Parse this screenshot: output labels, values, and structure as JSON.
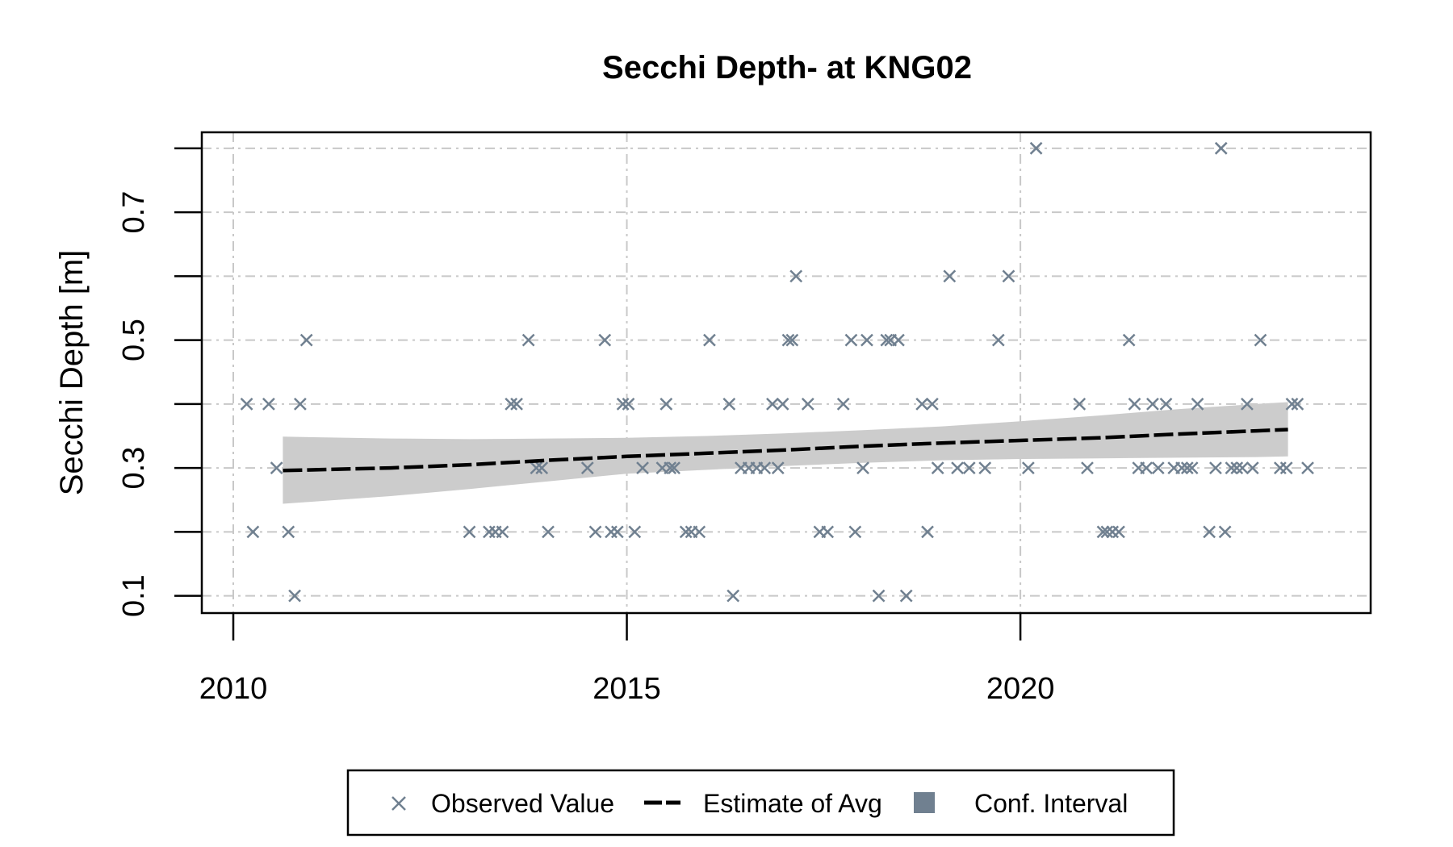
{
  "chart_data": {
    "type": "scatter",
    "title": "Secchi Depth- at KNG02",
    "xlabel": "",
    "ylabel": "Secchi Depth [m]",
    "xlim": [
      2009.6,
      2024.45
    ],
    "ylim": [
      0.073,
      0.825
    ],
    "x_ticks": [
      2010,
      2015,
      2020
    ],
    "x_tick_labels": [
      "2010",
      "2015",
      "2020"
    ],
    "y_ticks": [
      0.1,
      0.3,
      0.5,
      0.7
    ],
    "y_tick_labels": [
      "0.1",
      "0.3",
      "0.5",
      "0.7"
    ],
    "y_grid": [
      0.1,
      0.2,
      0.3,
      0.4,
      0.5,
      0.6,
      0.7,
      0.8
    ],
    "grid": true,
    "legend_position": "bottom",
    "colors": {
      "observed": "#708090",
      "estimate": "#000000",
      "ci_band": "#cccccc",
      "ci_legend": "#708090",
      "grid": "#c8c8c8"
    },
    "legend": [
      {
        "label": "Observed Value",
        "marker": "x"
      },
      {
        "label": "Estimate of Avg",
        "marker": "dashed-line"
      },
      {
        "label": "Conf. Interval",
        "marker": "square"
      }
    ],
    "series": [
      {
        "name": "Observed Value",
        "points": [
          [
            2010.17,
            0.4
          ],
          [
            2010.25,
            0.2
          ],
          [
            2010.45,
            0.4
          ],
          [
            2010.55,
            0.3
          ],
          [
            2010.7,
            0.2
          ],
          [
            2010.78,
            0.1
          ],
          [
            2010.85,
            0.4
          ],
          [
            2010.93,
            0.5
          ],
          [
            2013.0,
            0.2
          ],
          [
            2013.25,
            0.2
          ],
          [
            2013.33,
            0.2
          ],
          [
            2013.42,
            0.2
          ],
          [
            2013.53,
            0.4
          ],
          [
            2013.6,
            0.4
          ],
          [
            2013.75,
            0.5
          ],
          [
            2013.85,
            0.3
          ],
          [
            2013.92,
            0.3
          ],
          [
            2014.0,
            0.2
          ],
          [
            2014.5,
            0.3
          ],
          [
            2014.6,
            0.2
          ],
          [
            2014.72,
            0.5
          ],
          [
            2014.8,
            0.2
          ],
          [
            2014.88,
            0.2
          ],
          [
            2014.95,
            0.4
          ],
          [
            2015.02,
            0.4
          ],
          [
            2015.1,
            0.2
          ],
          [
            2015.2,
            0.3
          ],
          [
            2015.45,
            0.3
          ],
          [
            2015.5,
            0.4
          ],
          [
            2015.55,
            0.3
          ],
          [
            2015.6,
            0.3
          ],
          [
            2015.75,
            0.2
          ],
          [
            2015.82,
            0.2
          ],
          [
            2015.92,
            0.2
          ],
          [
            2016.05,
            0.5
          ],
          [
            2016.3,
            0.4
          ],
          [
            2016.35,
            0.1
          ],
          [
            2016.45,
            0.3
          ],
          [
            2016.55,
            0.3
          ],
          [
            2016.65,
            0.3
          ],
          [
            2016.75,
            0.3
          ],
          [
            2016.85,
            0.4
          ],
          [
            2016.92,
            0.3
          ],
          [
            2016.98,
            0.4
          ],
          [
            2017.05,
            0.5
          ],
          [
            2017.1,
            0.5
          ],
          [
            2017.15,
            0.6
          ],
          [
            2017.3,
            0.4
          ],
          [
            2017.45,
            0.2
          ],
          [
            2017.55,
            0.2
          ],
          [
            2017.75,
            0.4
          ],
          [
            2017.85,
            0.5
          ],
          [
            2017.9,
            0.2
          ],
          [
            2018.0,
            0.3
          ],
          [
            2018.05,
            0.5
          ],
          [
            2018.2,
            0.1
          ],
          [
            2018.3,
            0.5
          ],
          [
            2018.35,
            0.5
          ],
          [
            2018.45,
            0.5
          ],
          [
            2018.55,
            0.1
          ],
          [
            2018.75,
            0.4
          ],
          [
            2018.82,
            0.2
          ],
          [
            2018.88,
            0.4
          ],
          [
            2018.95,
            0.3
          ],
          [
            2019.1,
            0.6
          ],
          [
            2019.2,
            0.3
          ],
          [
            2019.35,
            0.3
          ],
          [
            2019.55,
            0.3
          ],
          [
            2019.72,
            0.5
          ],
          [
            2019.85,
            0.6
          ],
          [
            2020.1,
            0.3
          ],
          [
            2020.2,
            0.8
          ],
          [
            2020.75,
            0.4
          ],
          [
            2020.85,
            0.3
          ],
          [
            2021.05,
            0.2
          ],
          [
            2021.1,
            0.2
          ],
          [
            2021.17,
            0.2
          ],
          [
            2021.25,
            0.2
          ],
          [
            2021.38,
            0.5
          ],
          [
            2021.45,
            0.4
          ],
          [
            2021.5,
            0.3
          ],
          [
            2021.6,
            0.3
          ],
          [
            2021.68,
            0.4
          ],
          [
            2021.75,
            0.3
          ],
          [
            2021.85,
            0.4
          ],
          [
            2021.95,
            0.3
          ],
          [
            2022.05,
            0.3
          ],
          [
            2022.12,
            0.3
          ],
          [
            2022.18,
            0.3
          ],
          [
            2022.25,
            0.4
          ],
          [
            2022.4,
            0.2
          ],
          [
            2022.48,
            0.3
          ],
          [
            2022.55,
            0.8
          ],
          [
            2022.6,
            0.2
          ],
          [
            2022.68,
            0.3
          ],
          [
            2022.75,
            0.3
          ],
          [
            2022.82,
            0.3
          ],
          [
            2022.88,
            0.4
          ],
          [
            2022.95,
            0.3
          ],
          [
            2023.05,
            0.5
          ],
          [
            2023.3,
            0.3
          ],
          [
            2023.38,
            0.3
          ],
          [
            2023.45,
            0.4
          ],
          [
            2023.52,
            0.4
          ],
          [
            2023.65,
            0.3
          ]
        ]
      },
      {
        "name": "Estimate of Avg",
        "points": [
          [
            2010.63,
            0.296
          ],
          [
            2012.0,
            0.3
          ],
          [
            2013.0,
            0.305
          ],
          [
            2014.0,
            0.312
          ],
          [
            2015.0,
            0.318
          ],
          [
            2016.0,
            0.323
          ],
          [
            2017.0,
            0.328
          ],
          [
            2018.0,
            0.334
          ],
          [
            2019.0,
            0.339
          ],
          [
            2020.0,
            0.343
          ],
          [
            2021.0,
            0.347
          ],
          [
            2022.0,
            0.353
          ],
          [
            2023.0,
            0.358
          ],
          [
            2023.4,
            0.36
          ]
        ]
      },
      {
        "name": "Conf. Interval",
        "x": [
          2010.63,
          2012.0,
          2013.0,
          2014.0,
          2015.0,
          2016.0,
          2017.0,
          2018.0,
          2019.0,
          2020.0,
          2021.0,
          2022.0,
          2023.0,
          2023.4
        ],
        "upper": [
          0.349,
          0.346,
          0.345,
          0.346,
          0.347,
          0.35,
          0.354,
          0.359,
          0.365,
          0.373,
          0.382,
          0.392,
          0.4,
          0.403
        ],
        "lower": [
          0.244,
          0.256,
          0.267,
          0.279,
          0.291,
          0.297,
          0.303,
          0.308,
          0.312,
          0.314,
          0.315,
          0.316,
          0.317,
          0.318
        ]
      }
    ]
  }
}
